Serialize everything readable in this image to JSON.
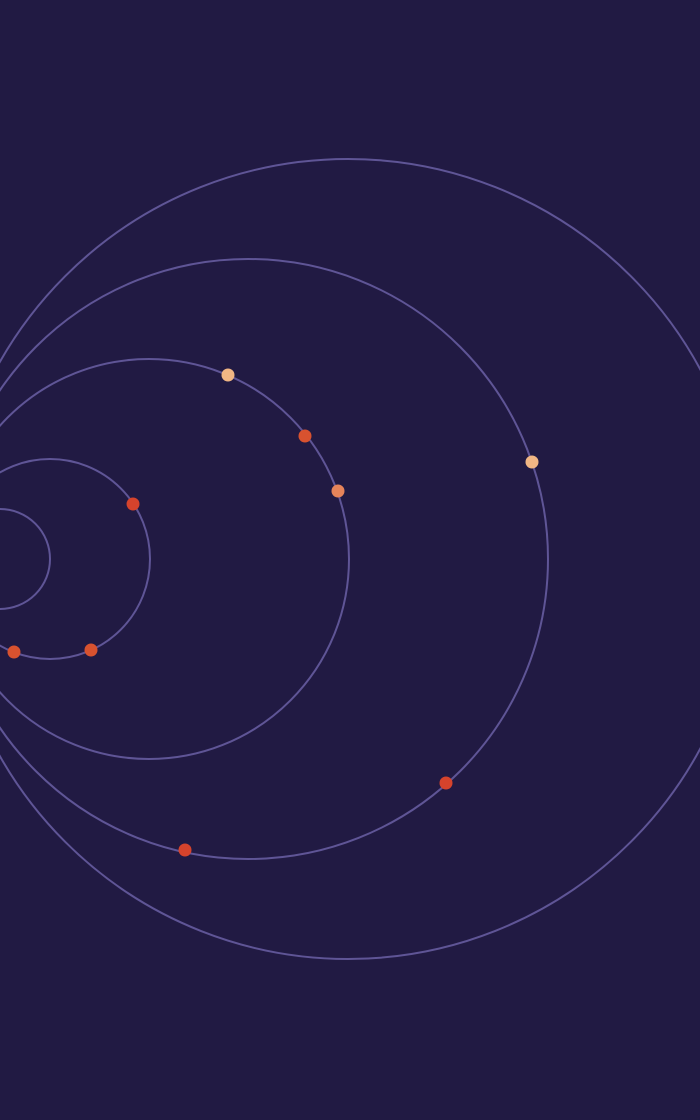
{
  "colors": {
    "background": "#211a43",
    "ring": "#5f5596",
    "dot_red": "#d5432c",
    "dot_red_orange": "#d8522f",
    "dot_orange": "#e6845a",
    "dot_peach": "#f1b684"
  },
  "rings": [
    {
      "name": "ring-1",
      "dots": []
    },
    {
      "name": "ring-2",
      "dots": [
        {
          "color": "dot_red"
        },
        {
          "color": "dot_red_orange"
        },
        {
          "color": "dot_red_orange"
        }
      ]
    },
    {
      "name": "ring-3",
      "dots": [
        {
          "color": "dot_peach"
        },
        {
          "color": "dot_red_orange"
        },
        {
          "color": "dot_orange"
        }
      ]
    },
    {
      "name": "ring-4",
      "dots": [
        {
          "color": "dot_peach"
        },
        {
          "color": "dot_red"
        },
        {
          "color": "dot_red"
        }
      ]
    },
    {
      "name": "ring-5",
      "dots": []
    }
  ]
}
